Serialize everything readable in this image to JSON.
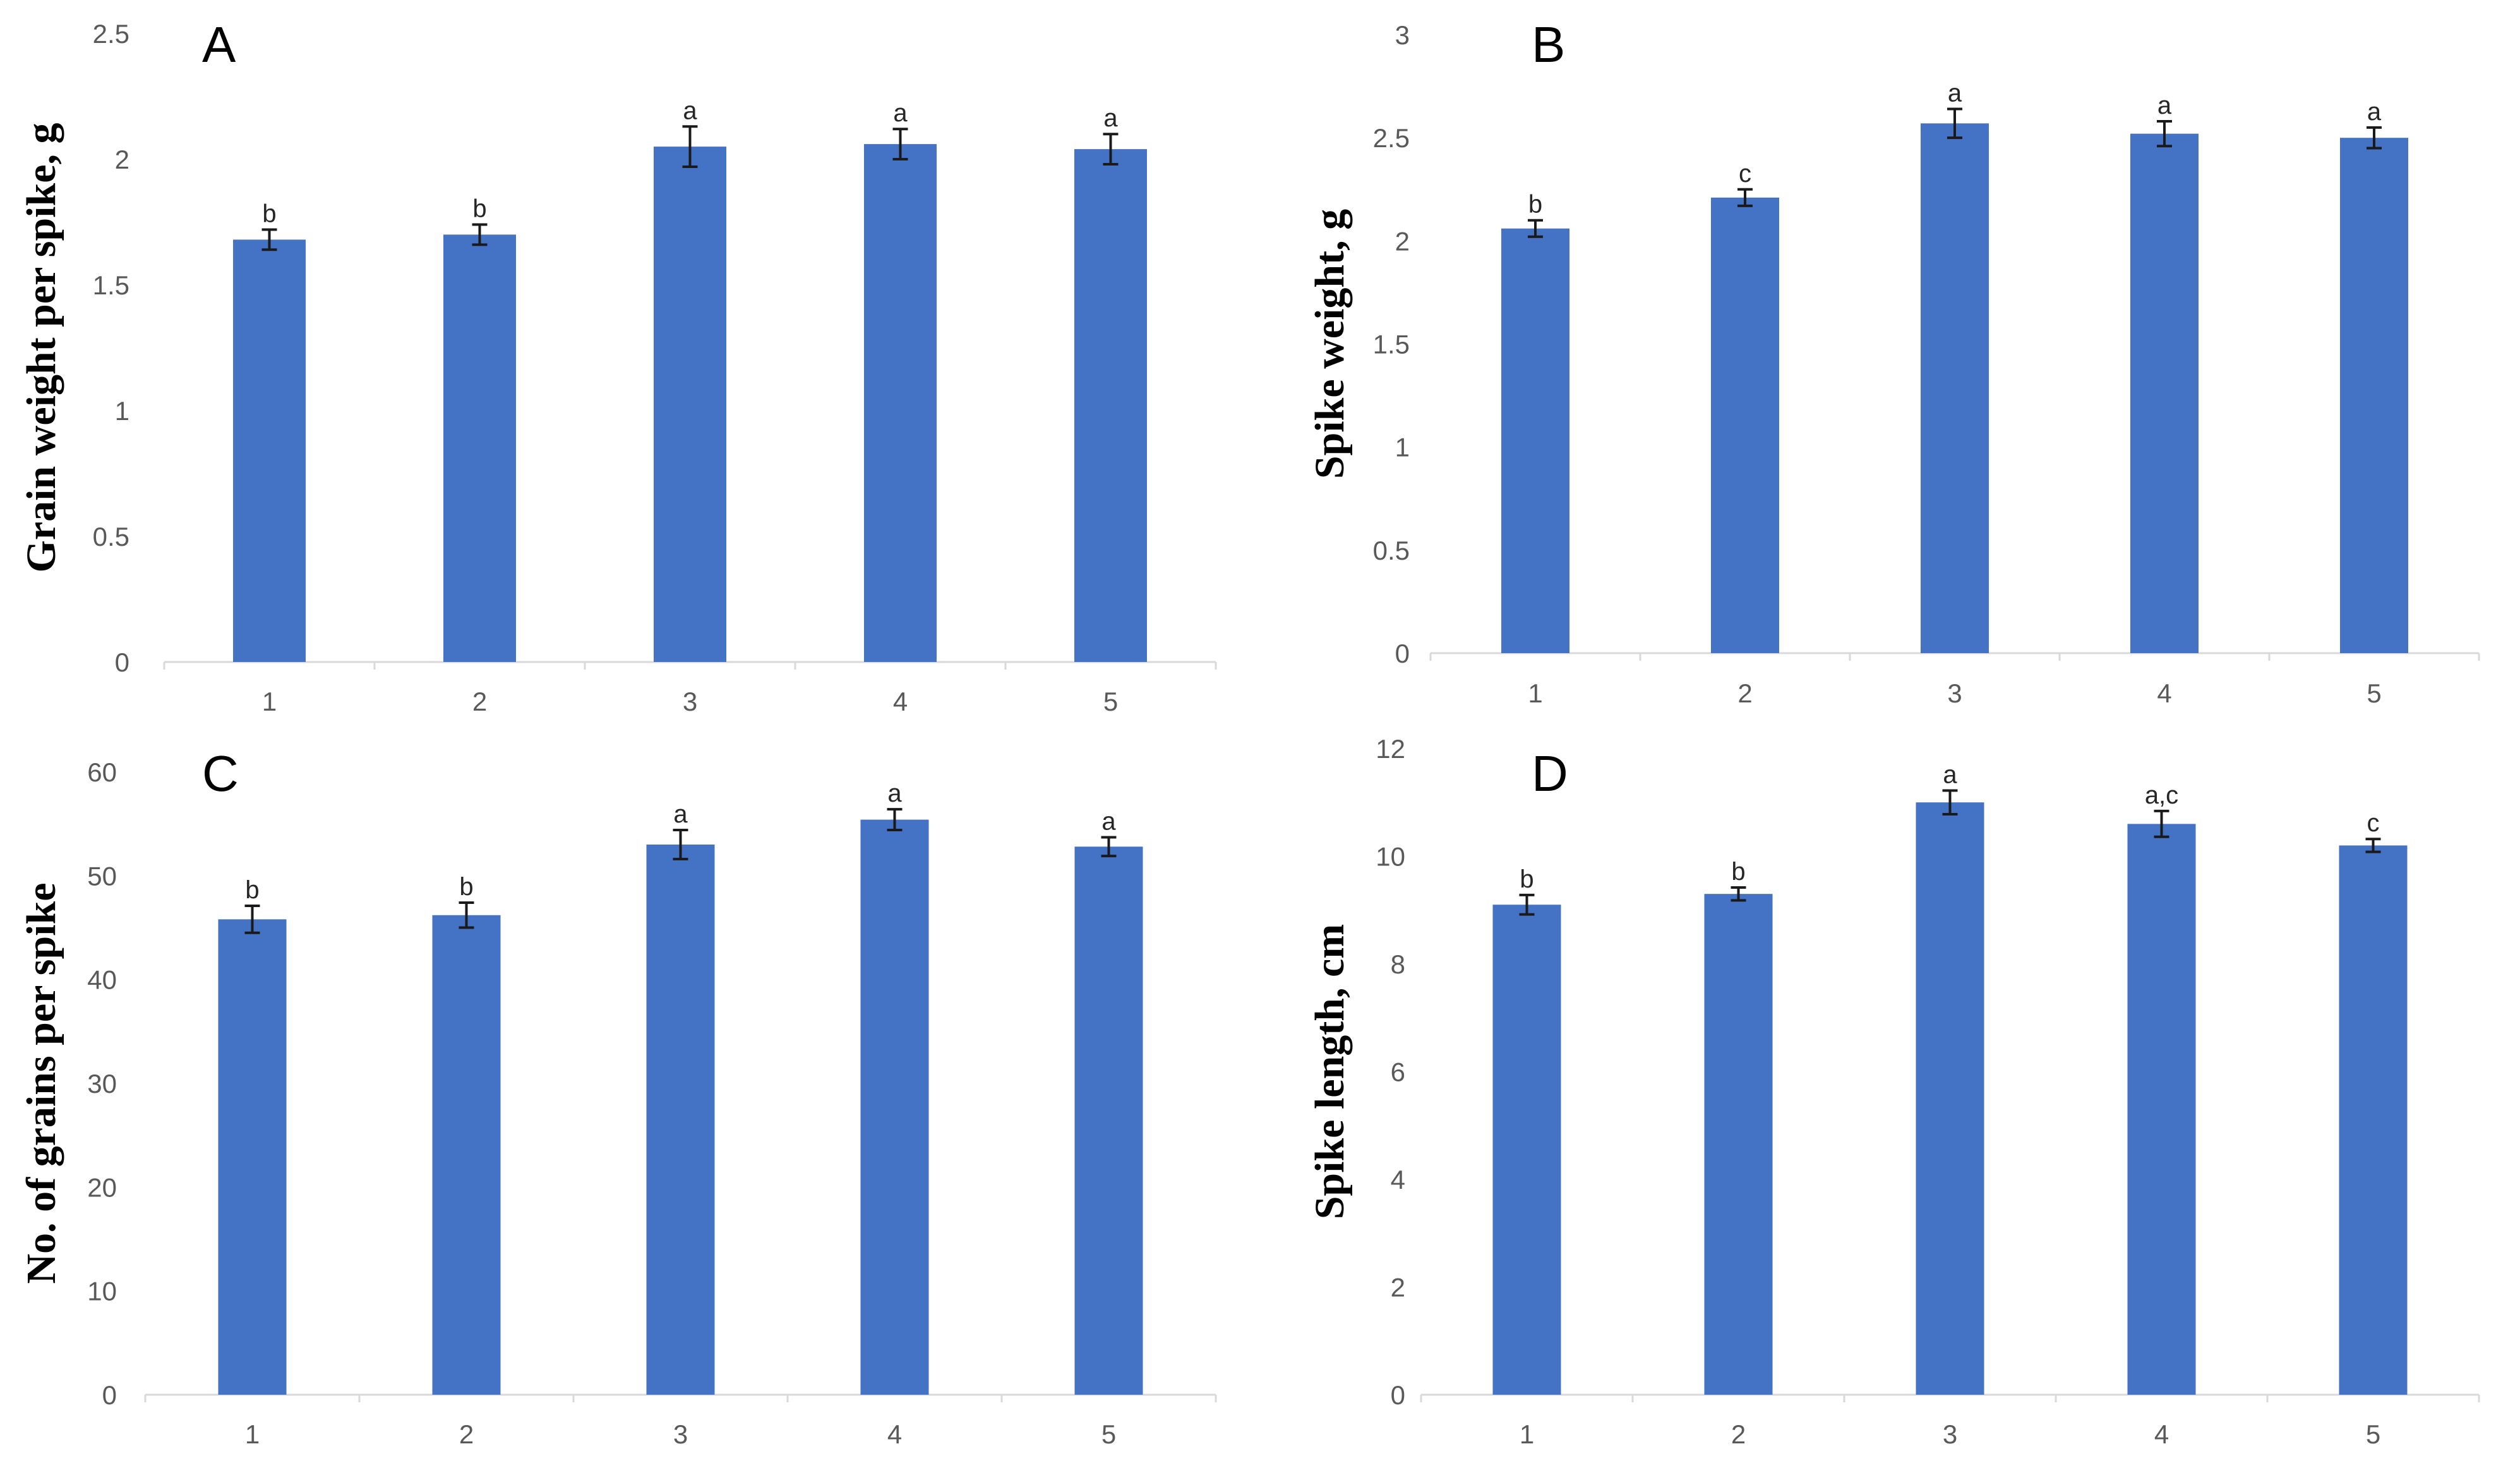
{
  "colors": {
    "bar": "#4472C4",
    "axis": "#d9d9d9",
    "tick_text": "#595959"
  },
  "chart_data": [
    {
      "type": "bar",
      "panel": "A",
      "title": "",
      "xlabel": "",
      "ylabel": "Grain weight per spike, g",
      "categories": [
        "1",
        "2",
        "3",
        "4",
        "5"
      ],
      "values": [
        1.68,
        1.7,
        2.05,
        2.06,
        2.04
      ],
      "errors": [
        0.04,
        0.04,
        0.08,
        0.06,
        0.06
      ],
      "significance": [
        "b",
        "b",
        "a",
        "a",
        "a"
      ],
      "ylim": [
        0,
        2.5
      ],
      "yticks": [
        "0",
        "0.5",
        "1",
        "1.5",
        "2",
        "2.5"
      ],
      "grid": false
    },
    {
      "type": "bar",
      "panel": "B",
      "title": "",
      "xlabel": "",
      "ylabel": "Spike weight, g",
      "categories": [
        "1",
        "2",
        "3",
        "4",
        "5"
      ],
      "values": [
        2.06,
        2.21,
        2.57,
        2.52,
        2.5
      ],
      "errors": [
        0.04,
        0.04,
        0.07,
        0.06,
        0.05
      ],
      "significance": [
        "b",
        "c",
        "a",
        "a",
        "a"
      ],
      "ylim": [
        0,
        3
      ],
      "yticks": [
        "0",
        "0.5",
        "1",
        "1.5",
        "2",
        "2.5",
        "3"
      ],
      "grid": false
    },
    {
      "type": "bar",
      "panel": "C",
      "title": "",
      "xlabel": "",
      "ylabel": "No. of grains per spike",
      "categories": [
        "1",
        "2",
        "3",
        "4",
        "5"
      ],
      "values": [
        45.8,
        46.2,
        53.0,
        55.4,
        52.8
      ],
      "errors": [
        1.3,
        1.2,
        1.4,
        1.0,
        0.9
      ],
      "significance": [
        "b",
        "b",
        "a",
        "a",
        "a"
      ],
      "ylim": [
        0,
        60
      ],
      "yticks": [
        "0",
        "10",
        "20",
        "30",
        "40",
        "50",
        "60"
      ],
      "grid": false
    },
    {
      "type": "bar",
      "panel": "D",
      "title": "",
      "xlabel": "",
      "ylabel": "Spike length, cm",
      "categories": [
        "1",
        "2",
        "3",
        "4",
        "5"
      ],
      "values": [
        9.1,
        9.3,
        11.0,
        10.6,
        10.2
      ],
      "errors": [
        0.18,
        0.12,
        0.22,
        0.24,
        0.12
      ],
      "significance": [
        "b",
        "b",
        "a",
        "a,c",
        "c"
      ],
      "ylim": [
        0,
        12
      ],
      "yticks": [
        "0",
        "2",
        "4",
        "6",
        "8",
        "10",
        "12"
      ],
      "grid": false
    }
  ]
}
